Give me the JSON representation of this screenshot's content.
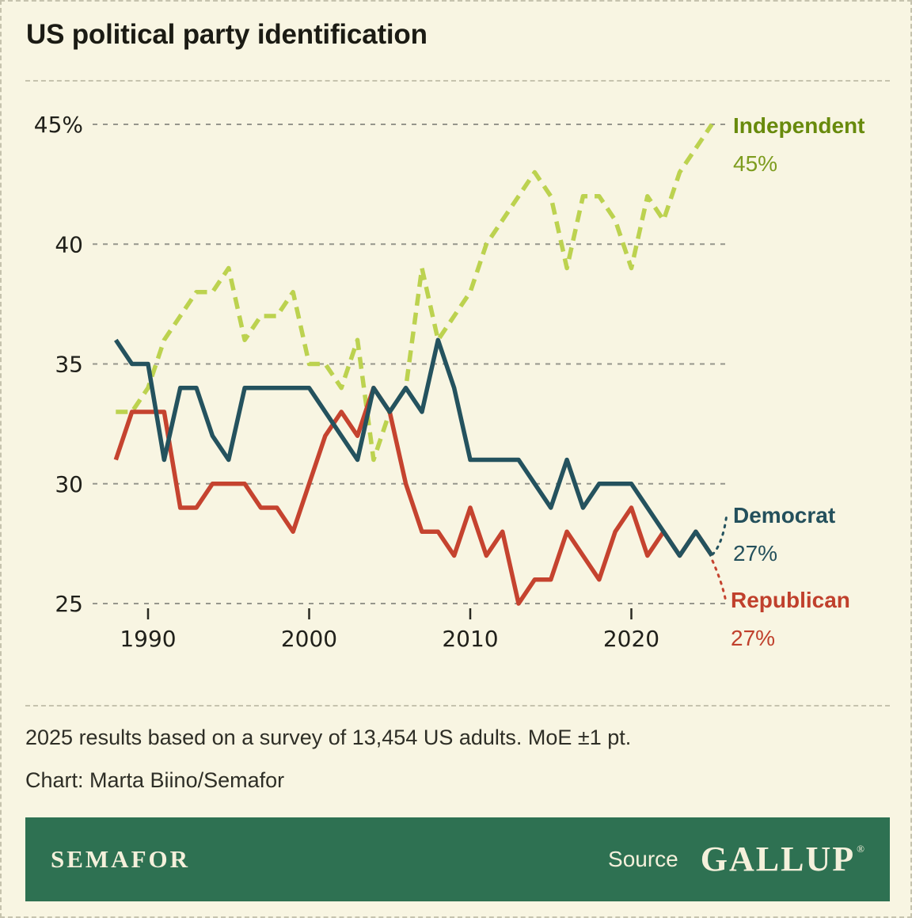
{
  "title": "US political party identification",
  "colors": {
    "background": "#f8f5e2",
    "border_dash": "#c6c3ae",
    "grid": "#96968c",
    "footer_bar": "#2e7152",
    "footer_text": "#f4f0db"
  },
  "chart_data": {
    "type": "line",
    "title": "US political party identification",
    "x": [
      1988,
      1989,
      1990,
      1991,
      1992,
      1993,
      1994,
      1995,
      1996,
      1997,
      1998,
      1999,
      2000,
      2001,
      2002,
      2003,
      2004,
      2005,
      2006,
      2007,
      2008,
      2009,
      2010,
      2011,
      2012,
      2013,
      2014,
      2015,
      2016,
      2017,
      2018,
      2019,
      2020,
      2021,
      2022,
      2023,
      2024,
      2025
    ],
    "series": [
      {
        "name": "Independent",
        "line_color": "#bcd24f",
        "label_color": "#688a0c",
        "value_color": "#7d9c1e",
        "dashed": true,
        "end_value": "45%",
        "values": [
          33,
          33,
          34,
          36,
          37,
          38,
          38,
          39,
          36,
          37,
          37,
          38,
          35,
          35,
          34,
          36,
          31,
          33,
          34,
          39,
          36,
          37,
          38,
          40,
          41,
          42,
          43,
          42,
          39,
          42,
          42,
          41,
          39,
          42,
          41,
          43,
          44,
          45
        ]
      },
      {
        "name": "Republican",
        "line_color": "#c5432f",
        "label_color": "#c0402c",
        "value_color": "#c0402c",
        "dashed": false,
        "end_value": "27%",
        "values": [
          31,
          33,
          33,
          33,
          29,
          29,
          30,
          30,
          30,
          29,
          29,
          28,
          30,
          32,
          33,
          32,
          34,
          33,
          30,
          28,
          28,
          27,
          29,
          27,
          28,
          25,
          26,
          26,
          28,
          27,
          26,
          28,
          29,
          27,
          28,
          27,
          28,
          27
        ]
      },
      {
        "name": "Democrat",
        "line_color": "#24525e",
        "label_color": "#24505c",
        "value_color": "#24505c",
        "dashed": false,
        "end_value": "27%",
        "values": [
          36,
          35,
          35,
          31,
          34,
          34,
          32,
          31,
          34,
          34,
          34,
          34,
          34,
          33,
          32,
          31,
          34,
          33,
          34,
          33,
          36,
          34,
          31,
          31,
          31,
          31,
          30,
          29,
          31,
          29,
          30,
          30,
          30,
          29,
          28,
          27,
          28,
          27
        ]
      }
    ],
    "ylim": [
      25,
      45
    ],
    "yticks": [
      {
        "value": 45,
        "label": "45%"
      },
      {
        "value": 40,
        "label": "40"
      },
      {
        "value": 35,
        "label": "35"
      },
      {
        "value": 30,
        "label": "30"
      },
      {
        "value": 25,
        "label": "25"
      }
    ],
    "xticks": [
      1990,
      2000,
      2010,
      2020
    ],
    "grid": "horizontal dashed",
    "legend_position": "right edge labels"
  },
  "notes": {
    "line1": "2025 results based on a survey of 13,454 US adults. MoE ±1 pt.",
    "line2": "Chart: Marta Biino/Semafor"
  },
  "footer": {
    "brand": "SEMAFOR",
    "source_label": "Source",
    "source_name": "GALLUP",
    "reg": "®"
  }
}
